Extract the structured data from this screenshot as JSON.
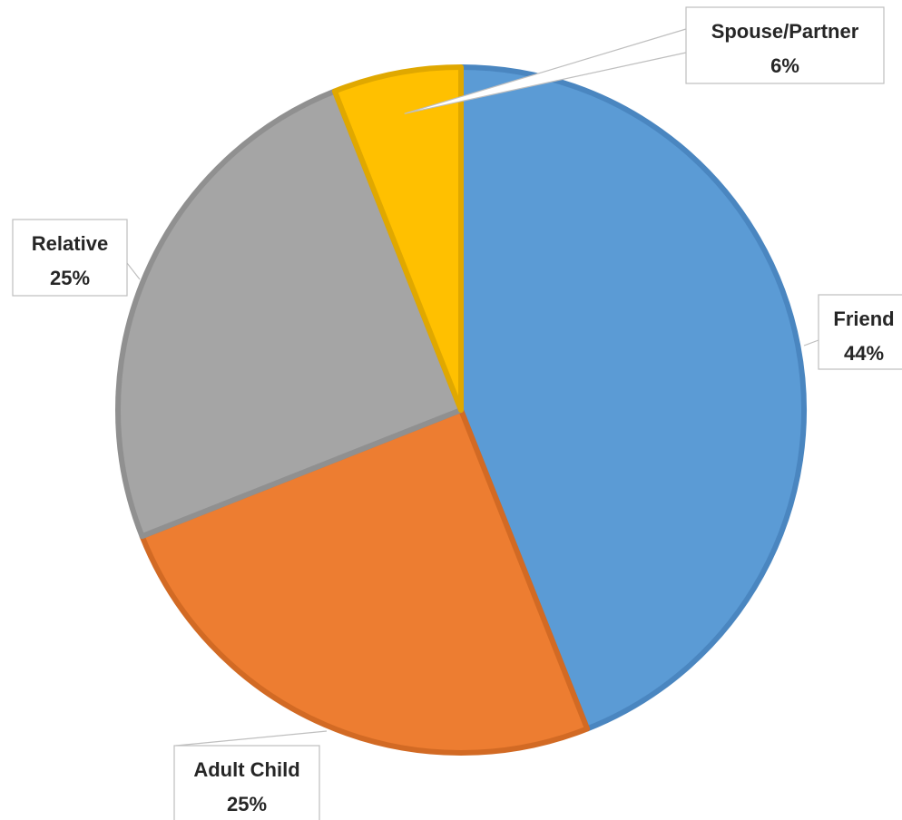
{
  "chart_data": {
    "type": "pie",
    "start_angle_deg": 0,
    "direction": "clockwise",
    "slices": [
      {
        "label": "Friend",
        "value": 44,
        "display": "44%",
        "color": "#5B9BD5",
        "border": "#4A86C0",
        "label_position": "right"
      },
      {
        "label": "Adult Child",
        "value": 25,
        "display": "25%",
        "color": "#ED7D31",
        "border": "#D26A24",
        "label_position": "bottom-left"
      },
      {
        "label": "Relative",
        "value": 25,
        "display": "25%",
        "color": "#A5A5A5",
        "border": "#909090",
        "label_position": "left"
      },
      {
        "label": "Spouse/Partner",
        "value": 6,
        "display": "6%",
        "color": "#FFC000",
        "border": "#E0A800",
        "label_position": "top-right"
      }
    ]
  }
}
